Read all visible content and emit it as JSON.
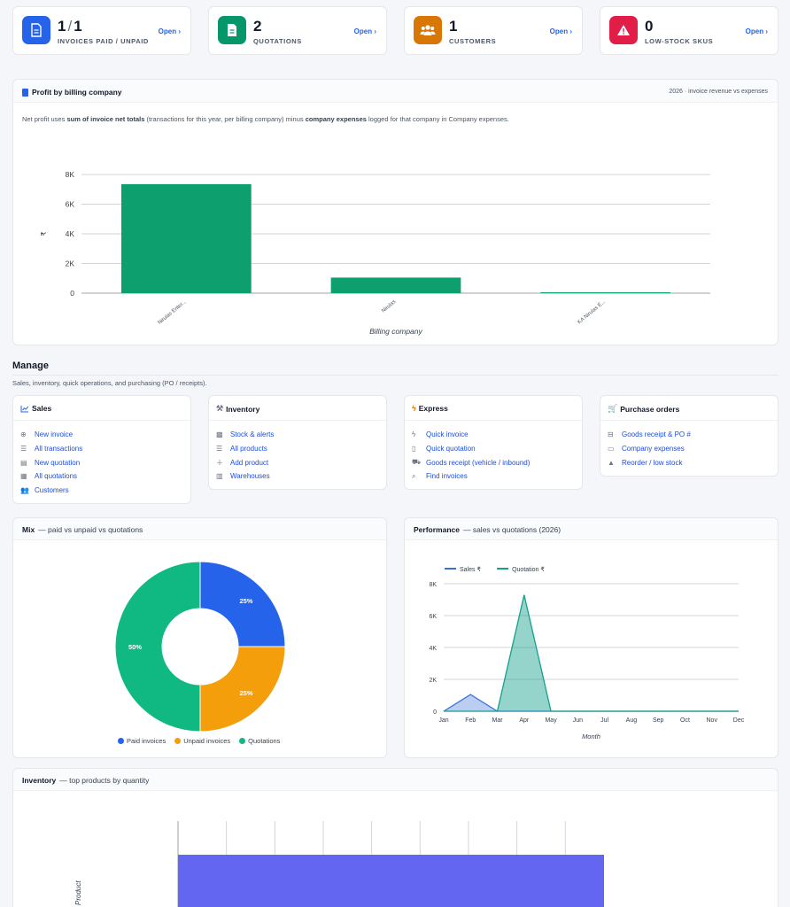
{
  "kpis": [
    {
      "value": "1",
      "value2": "1",
      "label": "INVOICES PAID / UNPAID",
      "open": "Open ›",
      "color": "#2563eb",
      "icon": "invoice-icon"
    },
    {
      "value": "2",
      "label": "QUOTATIONS",
      "open": "Open ›",
      "color": "#059669",
      "icon": "quotation-icon"
    },
    {
      "value": "1",
      "label": "CUSTOMERS",
      "open": "Open ›",
      "color": "#d97706",
      "icon": "customers-icon"
    },
    {
      "value": "0",
      "label": "LOW-STOCK SKUS",
      "open": "Open ›",
      "color": "#e11d48",
      "icon": "warning-icon"
    }
  ],
  "profit": {
    "title": "Profit by billing company",
    "range": "2026 · invoice revenue vs expenses",
    "note_pre": "Net profit uses ",
    "note_b1": "sum of invoice net totals",
    "note_mid": " (transactions for this year, per billing company) minus ",
    "note_b2": "company expenses",
    "note_post": " logged for that company in Company expenses."
  },
  "manage": {
    "title": "Manage",
    "subtitle": "Sales, inventory, quick operations, and purchasing (PO / receipts).",
    "sales": {
      "title": "Sales",
      "items": [
        "New invoice",
        "All transactions",
        "New quotation",
        "All quotations",
        "Customers"
      ]
    },
    "inventory": {
      "title": "Inventory",
      "items": [
        "Stock & alerts",
        "All products",
        "Add product",
        "Warehouses"
      ]
    },
    "express": {
      "title": "Express",
      "items": [
        "Quick invoice",
        "Quick quotation",
        "Goods receipt (vehicle / inbound)",
        "Find invoices"
      ]
    },
    "purchase": {
      "title": "Purchase orders",
      "items": [
        "Goods receipt & PO #",
        "Company expenses",
        "Reorder / low stock"
      ]
    }
  },
  "mix": {
    "title": "Mix",
    "subtitle": "— paid vs unpaid vs quotations"
  },
  "performance": {
    "title": "Performance",
    "subtitle": "— sales vs quotations (2026)"
  },
  "inventory_chart": {
    "title": "Inventory",
    "subtitle": "— top products by quantity"
  },
  "chart_data": [
    {
      "type": "bar",
      "title": "",
      "xlabel": "Billing company",
      "ylabel": "₹",
      "categories": [
        "Nirulas Enter...",
        "Nirulas",
        "KA Nirulas E..."
      ],
      "values": [
        7350,
        1050,
        60
      ],
      "ylim": [
        0,
        8000
      ],
      "yticks": [
        0,
        2000,
        4000,
        6000,
        8000
      ],
      "ytick_labels": [
        "0",
        "2K",
        "4K",
        "6K",
        "8K"
      ],
      "color": "#0e9f6e",
      "grid": true
    },
    {
      "type": "pie",
      "labels": [
        "Paid invoices",
        "Unpaid invoices",
        "Quotations"
      ],
      "values": [
        25,
        25,
        50
      ],
      "value_labels": [
        "25%",
        "25%",
        "50%"
      ],
      "colors": [
        "#2563eb",
        "#f59e0b",
        "#10b981"
      ],
      "legend": "bottom"
    },
    {
      "type": "area",
      "xlabel": "Month",
      "categories": [
        "Jan",
        "Feb",
        "Mar",
        "Apr",
        "May",
        "Jun",
        "Jul",
        "Aug",
        "Sep",
        "Oct",
        "Nov",
        "Dec"
      ],
      "series": [
        {
          "name": "Sales ₹",
          "values": [
            0,
            1050,
            0,
            0,
            0,
            0,
            0,
            0,
            0,
            0,
            0,
            0
          ],
          "color": "#3b6fd6"
        },
        {
          "name": "Quotation ₹",
          "values": [
            0,
            0,
            0,
            7300,
            0,
            0,
            0,
            0,
            0,
            0,
            0,
            0
          ],
          "color": "#14a08a"
        }
      ],
      "ylim": [
        0,
        8000
      ],
      "yticks": [
        0,
        2000,
        4000,
        6000,
        8000
      ],
      "ytick_labels": [
        "0",
        "2K",
        "4K",
        "6K",
        "8K"
      ],
      "legend": "top",
      "grid": true
    },
    {
      "type": "bar",
      "orientation": "horizontal",
      "ylabel": "Product",
      "color": "#6366f1",
      "grid": true
    }
  ]
}
